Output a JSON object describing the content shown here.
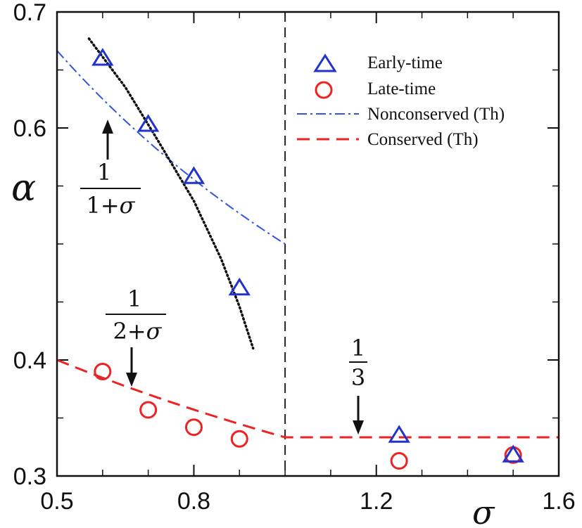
{
  "chart_data": {
    "type": "scatter",
    "xlabel": "σ",
    "ylabel": "α",
    "xlim": [
      0.5,
      1.6
    ],
    "ylim": [
      0.3,
      0.7
    ],
    "x_ticks": [
      "0.5",
      "0.8",
      "1.2",
      "1.6"
    ],
    "y_ticks": [
      "0.3",
      "0.4",
      "0.6",
      "0.7"
    ],
    "x_tick_values": [
      0.5,
      0.8,
      1.2,
      1.6
    ],
    "y_tick_values": [
      0.3,
      0.4,
      0.6,
      0.7
    ],
    "x_minor_tick_values": [
      0.6,
      0.7,
      0.9,
      1.0,
      1.1,
      1.3,
      1.4,
      1.5
    ],
    "y_minor_tick_values": [
      0.35,
      0.45,
      0.5,
      0.55,
      0.65
    ],
    "grid": false,
    "legend_position": "top-right",
    "vertical_reference_x": 1.0,
    "series": [
      {
        "name": "Early-time",
        "kind": "markers",
        "marker": "triangle",
        "color": "#2233cc",
        "points": [
          [
            0.6,
            0.66
          ],
          [
            0.7,
            0.603
          ],
          [
            0.8,
            0.558
          ],
          [
            0.9,
            0.462
          ],
          [
            1.25,
            0.335
          ],
          [
            1.5,
            0.318
          ]
        ]
      },
      {
        "name": "Late-time",
        "kind": "markers",
        "marker": "circle",
        "color": "#ee2222",
        "points": [
          [
            0.6,
            0.39
          ],
          [
            0.7,
            0.357
          ],
          [
            0.8,
            0.342
          ],
          [
            0.9,
            0.332
          ],
          [
            1.25,
            0.313
          ],
          [
            1.5,
            0.318
          ]
        ]
      },
      {
        "name": "Nonconserved (Th)",
        "kind": "line",
        "dash": "dashdot",
        "color": "#3355dd",
        "formula": "1/(1+σ)",
        "x_range": [
          0.5,
          1.0
        ]
      },
      {
        "name": "Conserved (Th)",
        "kind": "line",
        "dash": "dashed",
        "color": "#ee2222",
        "formula": "1/(2+σ) for σ<1, 1/3 for σ≥1",
        "x_range": [
          0.5,
          1.6
        ]
      },
      {
        "name": "",
        "kind": "line",
        "dash": "dotted",
        "color": "#111111",
        "points": [
          [
            0.57,
            0.677
          ],
          [
            0.65,
            0.635
          ],
          [
            0.72,
            0.59
          ],
          [
            0.8,
            0.537
          ],
          [
            0.86,
            0.487
          ],
          [
            0.9,
            0.446
          ],
          [
            0.93,
            0.41
          ]
        ]
      }
    ],
    "annotations": [
      {
        "name": "one-over-one-plus-sigma",
        "numerator": "1",
        "denominator_prefix": "1+",
        "denominator_var": "σ"
      },
      {
        "name": "one-over-two-plus-sigma",
        "numerator": "1",
        "denominator_prefix": "2+",
        "denominator_var": "σ"
      },
      {
        "name": "one-third",
        "numerator": "1",
        "denominator_prefix": "3",
        "denominator_var": ""
      }
    ]
  }
}
